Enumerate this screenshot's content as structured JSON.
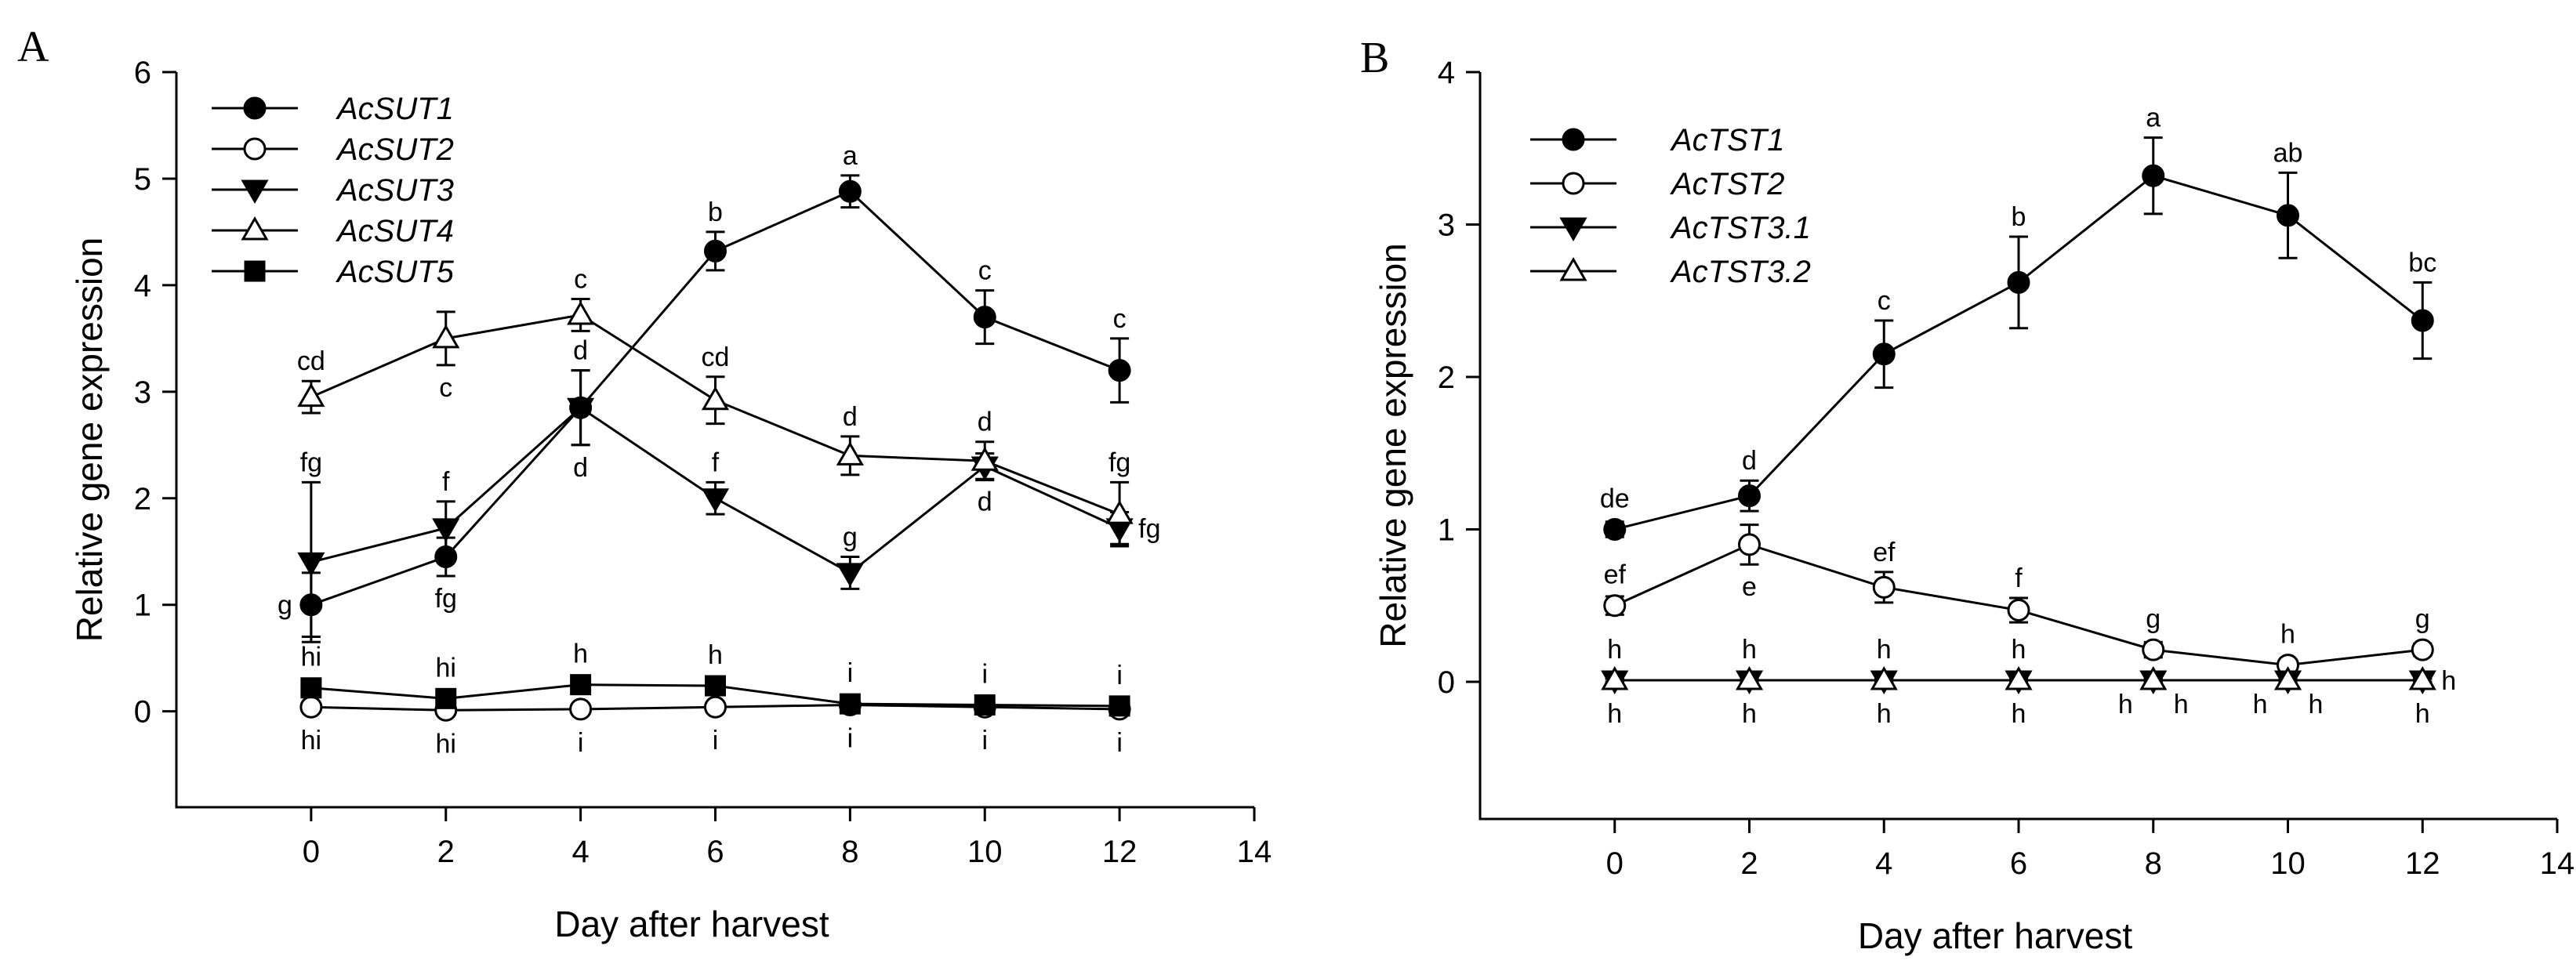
{
  "chart_data": [
    {
      "type": "line",
      "panel_label": "A",
      "xlabel": "Day after harvest",
      "ylabel": "Relative gene expression",
      "xlim": [
        -2,
        14
      ],
      "ylim": [
        -0.9,
        6
      ],
      "xticks": [
        0,
        2,
        4,
        6,
        8,
        10,
        12,
        14
      ],
      "yticks": [
        0,
        1,
        2,
        3,
        4,
        5,
        6
      ],
      "legend_position": "top-left",
      "series": [
        {
          "name": "AcSUT1",
          "marker": "circle-filled",
          "x": [
            0,
            2,
            4,
            6,
            8,
            10,
            12
          ],
          "y": [
            1.0,
            1.45,
            2.85,
            4.32,
            4.88,
            3.7,
            3.2
          ],
          "err": [
            0.3,
            0.18,
            0.35,
            0.18,
            0.15,
            0.25,
            0.3
          ],
          "labels": [
            {
              "text": "g",
              "pos": "left"
            },
            {
              "text": "fg",
              "pos": "below"
            },
            {
              "text": "d",
              "pos": "above"
            },
            {
              "text": "b",
              "pos": "above"
            },
            {
              "text": "a",
              "pos": "above"
            },
            {
              "text": "c",
              "pos": "above"
            },
            {
              "text": "c",
              "pos": "above"
            }
          ]
        },
        {
          "name": "AcSUT2",
          "marker": "circle-open",
          "x": [
            0,
            2,
            4,
            6,
            8,
            10,
            12
          ],
          "y": [
            0.04,
            0.01,
            0.02,
            0.04,
            0.06,
            0.04,
            0.02
          ],
          "err": [
            0.02,
            0.02,
            0.02,
            0.02,
            0.02,
            0.02,
            0.02
          ],
          "labels": [
            {
              "text": "hi",
              "pos": "below"
            },
            {
              "text": "hi",
              "pos": "below"
            },
            {
              "text": "i",
              "pos": "below"
            },
            {
              "text": "i",
              "pos": "below"
            },
            {
              "text": "i",
              "pos": "below"
            },
            {
              "text": "i",
              "pos": "below"
            },
            {
              "text": "i",
              "pos": "below"
            }
          ]
        },
        {
          "name": "AcSUT3",
          "marker": "triangle-down-filled",
          "x": [
            0,
            2,
            4,
            6,
            8,
            10,
            12
          ],
          "y": [
            1.4,
            1.72,
            2.85,
            2.0,
            1.3,
            2.3,
            1.72
          ],
          "err": [
            0.75,
            0.25,
            0.35,
            0.15,
            0.15,
            0.12,
            0.15
          ],
          "labels": [
            {
              "text": "fg",
              "pos": "above"
            },
            {
              "text": "f",
              "pos": "above"
            },
            {
              "text": "d",
              "pos": "below"
            },
            {
              "text": "f",
              "pos": "above"
            },
            {
              "text": "g",
              "pos": "above"
            },
            {
              "text": "d",
              "pos": "below"
            },
            {
              "text": "fg",
              "pos": "right"
            }
          ]
        },
        {
          "name": "AcSUT4",
          "marker": "triangle-up-open",
          "x": [
            0,
            2,
            4,
            6,
            8,
            10,
            12
          ],
          "y": [
            2.95,
            3.5,
            3.72,
            2.92,
            2.4,
            2.35,
            1.85
          ],
          "err": [
            0.15,
            0.25,
            0.15,
            0.22,
            0.18,
            0.18,
            0.3
          ],
          "labels": [
            {
              "text": "cd",
              "pos": "above"
            },
            {
              "text": "c",
              "pos": "below"
            },
            {
              "text": "c",
              "pos": "above"
            },
            {
              "text": "cd",
              "pos": "above"
            },
            {
              "text": "d",
              "pos": "above"
            },
            {
              "text": "d",
              "pos": "above"
            },
            {
              "text": "fg",
              "pos": "above"
            }
          ]
        },
        {
          "name": "AcSUT5",
          "marker": "square-filled",
          "x": [
            0,
            2,
            4,
            6,
            8,
            10,
            12
          ],
          "y": [
            0.22,
            0.12,
            0.25,
            0.24,
            0.07,
            0.06,
            0.05
          ],
          "err": [
            0.05,
            0.04,
            0.05,
            0.05,
            0.03,
            0.03,
            0.03
          ],
          "labels": [
            {
              "text": "hi",
              "pos": "above"
            },
            {
              "text": "hi",
              "pos": "above"
            },
            {
              "text": "h",
              "pos": "above"
            },
            {
              "text": "h",
              "pos": "above"
            },
            {
              "text": "i",
              "pos": "above"
            },
            {
              "text": "i",
              "pos": "above"
            },
            {
              "text": "i",
              "pos": "above"
            }
          ]
        }
      ]
    },
    {
      "type": "line",
      "panel_label": "B",
      "xlabel": "Day after harvest",
      "ylabel": "Relative gene expression",
      "xlim": [
        -2,
        14
      ],
      "ylim": [
        -0.9,
        4
      ],
      "xticks": [
        0,
        2,
        4,
        6,
        8,
        10,
        12,
        14
      ],
      "yticks": [
        0,
        1,
        2,
        3,
        4
      ],
      "legend_position": "top-left",
      "series": [
        {
          "name": "AcTST1",
          "marker": "circle-filled",
          "x": [
            0,
            2,
            4,
            6,
            8,
            10,
            12
          ],
          "y": [
            1.0,
            1.22,
            2.15,
            2.62,
            3.32,
            3.06,
            2.37
          ],
          "err": [
            0.05,
            0.1,
            0.22,
            0.3,
            0.25,
            0.28,
            0.25
          ],
          "labels": [
            {
              "text": "de",
              "pos": "above"
            },
            {
              "text": "d",
              "pos": "above"
            },
            {
              "text": "c",
              "pos": "above"
            },
            {
              "text": "b",
              "pos": "above"
            },
            {
              "text": "a",
              "pos": "above"
            },
            {
              "text": "ab",
              "pos": "above"
            },
            {
              "text": "bc",
              "pos": "above"
            }
          ]
        },
        {
          "name": "AcTST2",
          "marker": "circle-open",
          "x": [
            0,
            2,
            4,
            6,
            8,
            10,
            12
          ],
          "y": [
            0.5,
            0.9,
            0.62,
            0.47,
            0.21,
            0.11,
            0.21
          ],
          "err": [
            0.06,
            0.13,
            0.1,
            0.08,
            0.05,
            0.03,
            0.04
          ],
          "labels": [
            {
              "text": "ef",
              "pos": "above"
            },
            {
              "text": "e",
              "pos": "below"
            },
            {
              "text": "ef",
              "pos": "above"
            },
            {
              "text": "f",
              "pos": "above"
            },
            {
              "text": "g",
              "pos": "above"
            },
            {
              "text": "h",
              "pos": "above"
            },
            {
              "text": "g",
              "pos": "above"
            }
          ]
        },
        {
          "name": "AcTST3.1",
          "marker": "triangle-down-filled",
          "x": [
            0,
            2,
            4,
            6,
            8,
            10,
            12
          ],
          "y": [
            0.01,
            0.01,
            0.01,
            0.01,
            0.01,
            0.01,
            0.01
          ],
          "err": [
            0.01,
            0.01,
            0.01,
            0.01,
            0.01,
            0.01,
            0.01
          ],
          "labels": [
            {
              "text": "h",
              "pos": "below"
            },
            {
              "text": "h",
              "pos": "below"
            },
            {
              "text": "h",
              "pos": "below"
            },
            {
              "text": "h",
              "pos": "below"
            },
            {
              "text": "h",
              "pos": "below-left"
            },
            {
              "text": "h",
              "pos": "below-left"
            },
            {
              "text": "h",
              "pos": "below"
            }
          ]
        },
        {
          "name": "AcTST3.2",
          "marker": "triangle-up-open",
          "x": [
            0,
            2,
            4,
            6,
            8,
            10,
            12
          ],
          "y": [
            0.01,
            0.01,
            0.01,
            0.01,
            0.01,
            0.01,
            0.01
          ],
          "err": [
            0.01,
            0.01,
            0.01,
            0.01,
            0.01,
            0.01,
            0.01
          ],
          "labels": [
            {
              "text": "h",
              "pos": "above"
            },
            {
              "text": "h",
              "pos": "above"
            },
            {
              "text": "h",
              "pos": "above"
            },
            {
              "text": "h",
              "pos": "above"
            },
            {
              "text": "h",
              "pos": "below-right"
            },
            {
              "text": "h",
              "pos": "below-right"
            },
            {
              "text": "h",
              "pos": "right"
            }
          ]
        }
      ]
    }
  ]
}
